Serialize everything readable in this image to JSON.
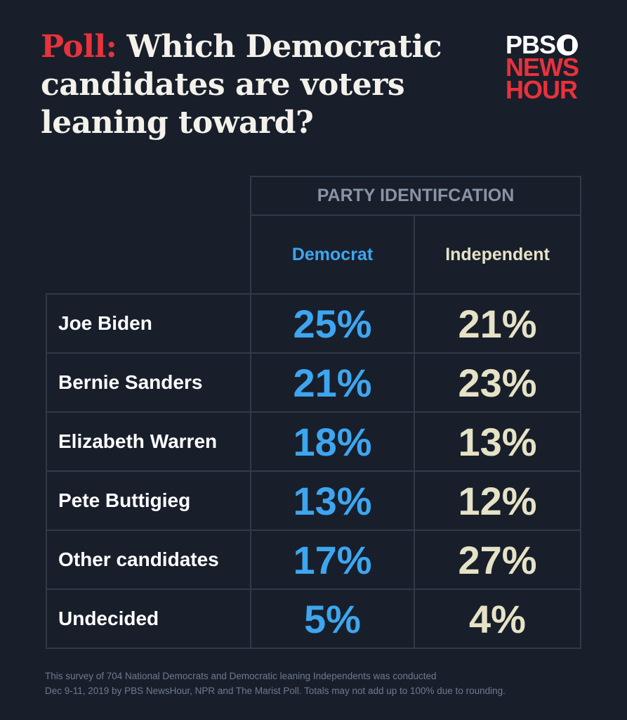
{
  "title": {
    "prefix": "Poll:",
    "text": "Which Democratic candidates are voters leaning toward?"
  },
  "logo": {
    "line1": "PBS",
    "line2": "NEWS",
    "line3": "HOUR"
  },
  "colors": {
    "accent_red": "#e8323c",
    "democrat": "#3ea6f0",
    "independent": "#e6e2c6",
    "background": "#181f2b"
  },
  "chart_data": {
    "type": "table",
    "group_header": "PARTY IDENTIFCATION",
    "columns": [
      "Democrat",
      "Independent"
    ],
    "rows": [
      {
        "label": "Joe Biden",
        "values": [
          "25%",
          "21%"
        ]
      },
      {
        "label": "Bernie Sanders",
        "values": [
          "21%",
          "23%"
        ]
      },
      {
        "label": "Elizabeth Warren",
        "values": [
          "18%",
          "13%"
        ]
      },
      {
        "label": "Pete Buttigieg",
        "values": [
          "13%",
          "12%"
        ]
      },
      {
        "label": "Other candidates",
        "values": [
          "17%",
          "27%"
        ]
      },
      {
        "label": "Undecided",
        "values": [
          "5%",
          "4%"
        ]
      }
    ]
  },
  "footnote": {
    "line1": "This survey of 704 National Democrats and Democratic leaning Independents was conducted",
    "line2": "Dec 9-11, 2019 by PBS NewsHour, NPR and The Marist Poll. Totals may not add up to 100% due to rounding."
  }
}
